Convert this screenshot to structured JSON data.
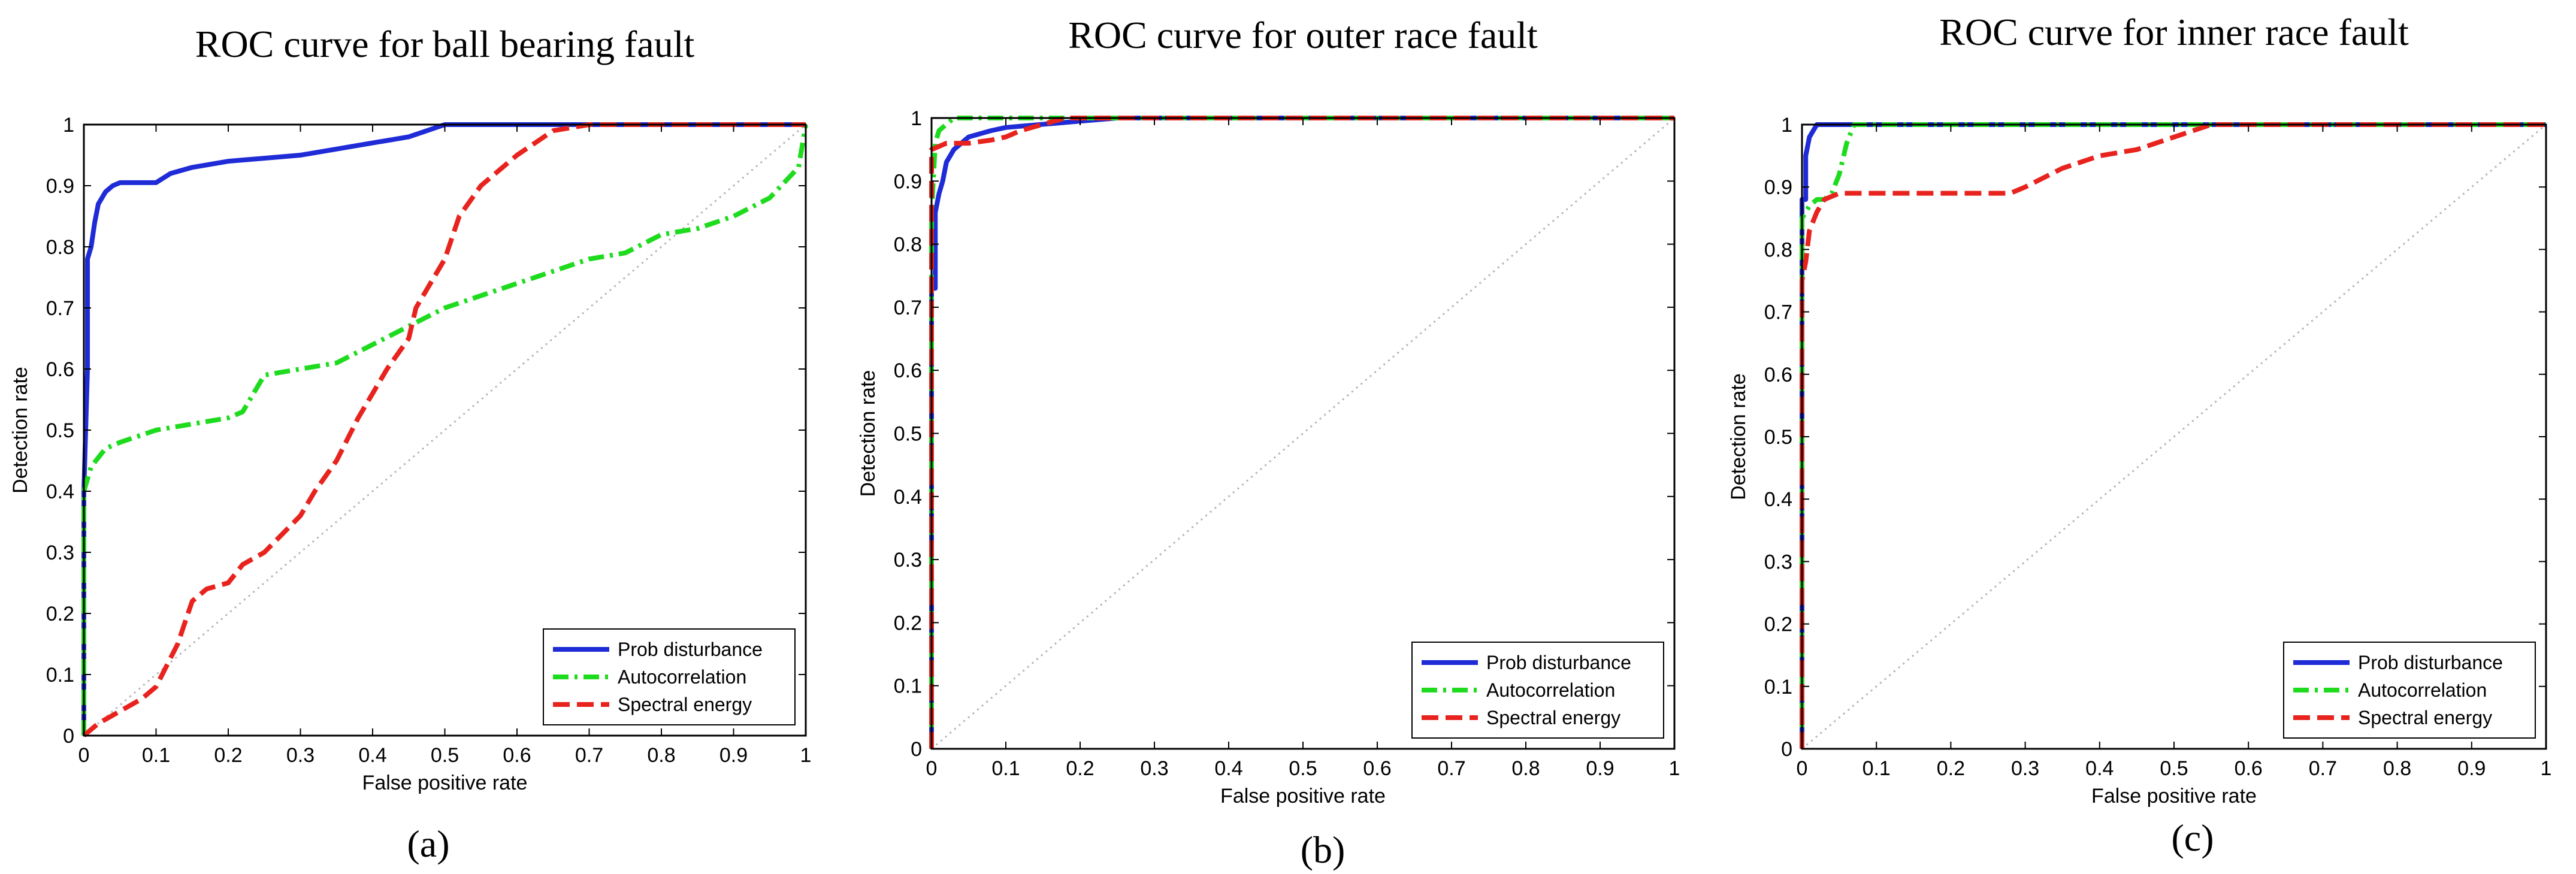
{
  "figure": {
    "type": "roc-panels",
    "background": "#ffffff"
  },
  "chart_data": [
    {
      "type": "line",
      "panel": "a",
      "title": "ROC curve for ball bearing fault",
      "caption": "(a)",
      "xlabel": "False positive rate",
      "ylabel": "Detection rate",
      "xlim": [
        0,
        1
      ],
      "ylim": [
        0,
        1
      ],
      "xticks": [
        "0",
        "0.1",
        "0.2",
        "0.3",
        "0.4",
        "0.5",
        "0.6",
        "0.7",
        "0.8",
        "0.9",
        "1"
      ],
      "yticks": [
        "0",
        "0.1",
        "0.2",
        "0.3",
        "0.4",
        "0.5",
        "0.6",
        "0.7",
        "0.8",
        "0.9",
        "1"
      ],
      "legend_position": "bottom-right",
      "reference_line": {
        "name": "chance",
        "x": [
          0,
          1
        ],
        "y": [
          0,
          1
        ],
        "color": "#b5b5b5"
      },
      "series": [
        {
          "name": "Prob disturbance",
          "color": "#1f2bd6",
          "style": "solid",
          "x": [
            0,
            0,
            0.005,
            0.005,
            0.01,
            0.015,
            0.02,
            0.03,
            0.04,
            0.05,
            0.1,
            0.12,
            0.15,
            0.2,
            0.25,
            0.3,
            0.35,
            0.4,
            0.45,
            0.5,
            0.6,
            0.7,
            1.0
          ],
          "y": [
            0,
            0.4,
            0.6,
            0.78,
            0.8,
            0.84,
            0.87,
            0.89,
            0.9,
            0.905,
            0.905,
            0.92,
            0.93,
            0.94,
            0.945,
            0.95,
            0.96,
            0.97,
            0.98,
            1.0,
            1.0,
            1.0,
            1.0
          ]
        },
        {
          "name": "Autocorrelation",
          "color": "#1edb1e",
          "style": "dashdot",
          "x": [
            0,
            0,
            0.01,
            0.03,
            0.05,
            0.1,
            0.15,
            0.2,
            0.22,
            0.25,
            0.3,
            0.35,
            0.4,
            0.45,
            0.5,
            0.55,
            0.6,
            0.65,
            0.7,
            0.75,
            0.8,
            0.85,
            0.9,
            0.95,
            0.99,
            1.0
          ],
          "y": [
            0,
            0.4,
            0.44,
            0.47,
            0.48,
            0.5,
            0.51,
            0.52,
            0.53,
            0.59,
            0.6,
            0.61,
            0.64,
            0.67,
            0.7,
            0.72,
            0.74,
            0.76,
            0.78,
            0.79,
            0.82,
            0.83,
            0.85,
            0.88,
            0.93,
            1.0
          ]
        },
        {
          "name": "Spectral energy",
          "color": "#e8231e",
          "style": "dashed",
          "x": [
            0,
            0.02,
            0.05,
            0.08,
            0.1,
            0.13,
            0.15,
            0.17,
            0.2,
            0.22,
            0.25,
            0.3,
            0.32,
            0.35,
            0.38,
            0.4,
            0.42,
            0.45,
            0.46,
            0.48,
            0.5,
            0.52,
            0.55,
            0.6,
            0.65,
            0.7,
            1.0
          ],
          "y": [
            0,
            0.02,
            0.04,
            0.06,
            0.08,
            0.15,
            0.22,
            0.24,
            0.25,
            0.28,
            0.3,
            0.36,
            0.4,
            0.45,
            0.52,
            0.56,
            0.6,
            0.65,
            0.7,
            0.74,
            0.78,
            0.85,
            0.9,
            0.95,
            0.99,
            1.0,
            1.0
          ]
        }
      ]
    },
    {
      "type": "line",
      "panel": "b",
      "title": "ROC curve for outer race fault",
      "caption": "(b)",
      "xlabel": "False positive rate",
      "ylabel": "Detection rate",
      "xlim": [
        0,
        1
      ],
      "ylim": [
        0,
        1
      ],
      "xticks": [
        "0",
        "0.1",
        "0.2",
        "0.3",
        "0.4",
        "0.5",
        "0.6",
        "0.7",
        "0.8",
        "0.9",
        "1"
      ],
      "yticks": [
        "0",
        "0.1",
        "0.2",
        "0.3",
        "0.4",
        "0.5",
        "0.6",
        "0.7",
        "0.8",
        "0.9",
        "1"
      ],
      "legend_position": "bottom-right",
      "reference_line": {
        "name": "chance",
        "x": [
          0,
          1
        ],
        "y": [
          0,
          1
        ],
        "color": "#b5b5b5"
      },
      "series": [
        {
          "name": "Prob disturbance",
          "color": "#1f2bd6",
          "style": "solid",
          "x": [
            0,
            0,
            0.005,
            0.005,
            0.01,
            0.015,
            0.02,
            0.03,
            0.05,
            0.08,
            0.1,
            0.15,
            0.2,
            0.25,
            0.3,
            1.0
          ],
          "y": [
            0,
            0.73,
            0.73,
            0.85,
            0.88,
            0.9,
            0.93,
            0.95,
            0.97,
            0.98,
            0.985,
            0.99,
            0.995,
            1.0,
            1.0,
            1.0
          ]
        },
        {
          "name": "Autocorrelation",
          "color": "#1edb1e",
          "style": "dashdot",
          "x": [
            0,
            0,
            0.005,
            0.01,
            0.02,
            0.03,
            0.05,
            1.0
          ],
          "y": [
            0,
            0.85,
            0.96,
            0.98,
            0.99,
            1.0,
            1.0,
            1.0
          ]
        },
        {
          "name": "Spectral energy",
          "color": "#e8231e",
          "style": "dashed",
          "x": [
            0,
            0,
            0.01,
            0.02,
            0.05,
            0.08,
            0.1,
            0.12,
            0.15,
            0.18,
            0.2,
            1.0
          ],
          "y": [
            0,
            0.95,
            0.955,
            0.96,
            0.96,
            0.965,
            0.97,
            0.98,
            0.99,
            1.0,
            1.0,
            1.0
          ]
        }
      ]
    },
    {
      "type": "line",
      "panel": "c",
      "title": "ROC curve for inner race fault",
      "caption": "(c)",
      "xlabel": "False positive rate",
      "ylabel": "Detection rate",
      "xlim": [
        0,
        1
      ],
      "ylim": [
        0,
        1
      ],
      "xticks": [
        "0",
        "0.1",
        "0.2",
        "0.3",
        "0.4",
        "0.5",
        "0.6",
        "0.7",
        "0.8",
        "0.9",
        "1"
      ],
      "yticks": [
        "0",
        "0.1",
        "0.2",
        "0.3",
        "0.4",
        "0.5",
        "0.6",
        "0.7",
        "0.8",
        "0.9",
        "1"
      ],
      "legend_position": "bottom-right",
      "reference_line": {
        "name": "chance",
        "x": [
          0,
          1
        ],
        "y": [
          0,
          1
        ],
        "color": "#b5b5b5"
      },
      "series": [
        {
          "name": "Prob disturbance",
          "color": "#1f2bd6",
          "style": "solid",
          "x": [
            0,
            0,
            0.005,
            0.005,
            0.01,
            0.02,
            0.03,
            1.0
          ],
          "y": [
            0,
            0.88,
            0.88,
            0.95,
            0.98,
            1.0,
            1.0,
            1.0
          ]
        },
        {
          "name": "Autocorrelation",
          "color": "#1edb1e",
          "style": "dashdot",
          "x": [
            0,
            0,
            0.01,
            0.02,
            0.03,
            0.04,
            0.05,
            0.06,
            0.07,
            1.0
          ],
          "y": [
            0,
            0.85,
            0.87,
            0.88,
            0.88,
            0.89,
            0.92,
            0.97,
            1.0,
            1.0
          ]
        },
        {
          "name": "Spectral energy",
          "color": "#e8231e",
          "style": "dashed",
          "x": [
            0,
            0,
            0.005,
            0.01,
            0.02,
            0.03,
            0.05,
            0.1,
            0.2,
            0.28,
            0.3,
            0.35,
            0.4,
            0.45,
            0.5,
            0.55,
            1.0
          ],
          "y": [
            0,
            0.75,
            0.78,
            0.83,
            0.86,
            0.88,
            0.89,
            0.89,
            0.89,
            0.89,
            0.9,
            0.93,
            0.95,
            0.96,
            0.98,
            1.0,
            1.0
          ]
        }
      ]
    }
  ]
}
